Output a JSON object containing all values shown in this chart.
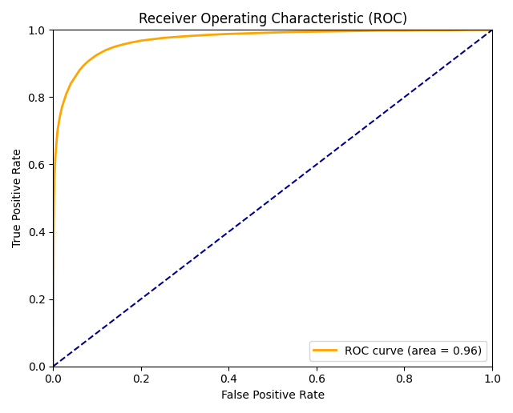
{
  "title": "Receiver Operating Characteristic (ROC)",
  "xlabel": "False Positive Rate",
  "ylabel": "True Positive Rate",
  "legend_label": "ROC curve (area = 0.96)",
  "roc_color": "#FFA500",
  "diagonal_color": "darkblue",
  "roc_linewidth": 2.0,
  "diagonal_linewidth": 1.5,
  "xlim": [
    0.0,
    1.0
  ],
  "ylim": [
    0.0,
    1.0
  ],
  "figsize": [
    6.4,
    5.16
  ],
  "dpi": 100,
  "fpr": [
    0.0,
    0.001,
    0.002,
    0.003,
    0.005,
    0.008,
    0.01,
    0.015,
    0.02,
    0.03,
    0.04,
    0.05,
    0.06,
    0.07,
    0.08,
    0.09,
    0.1,
    0.12,
    0.14,
    0.16,
    0.18,
    0.2,
    0.25,
    0.3,
    0.35,
    0.4,
    0.45,
    0.5,
    0.55,
    0.6,
    0.65,
    0.7,
    0.75,
    0.8,
    0.85,
    0.9,
    0.95,
    1.0
  ],
  "tpr": [
    0.0,
    0.38,
    0.5,
    0.56,
    0.62,
    0.67,
    0.7,
    0.74,
    0.77,
    0.81,
    0.84,
    0.86,
    0.88,
    0.895,
    0.907,
    0.917,
    0.926,
    0.94,
    0.95,
    0.957,
    0.963,
    0.968,
    0.976,
    0.981,
    0.985,
    0.988,
    0.99,
    0.992,
    0.994,
    0.995,
    0.996,
    0.997,
    0.998,
    0.998,
    0.999,
    0.999,
    1.0,
    1.0
  ]
}
